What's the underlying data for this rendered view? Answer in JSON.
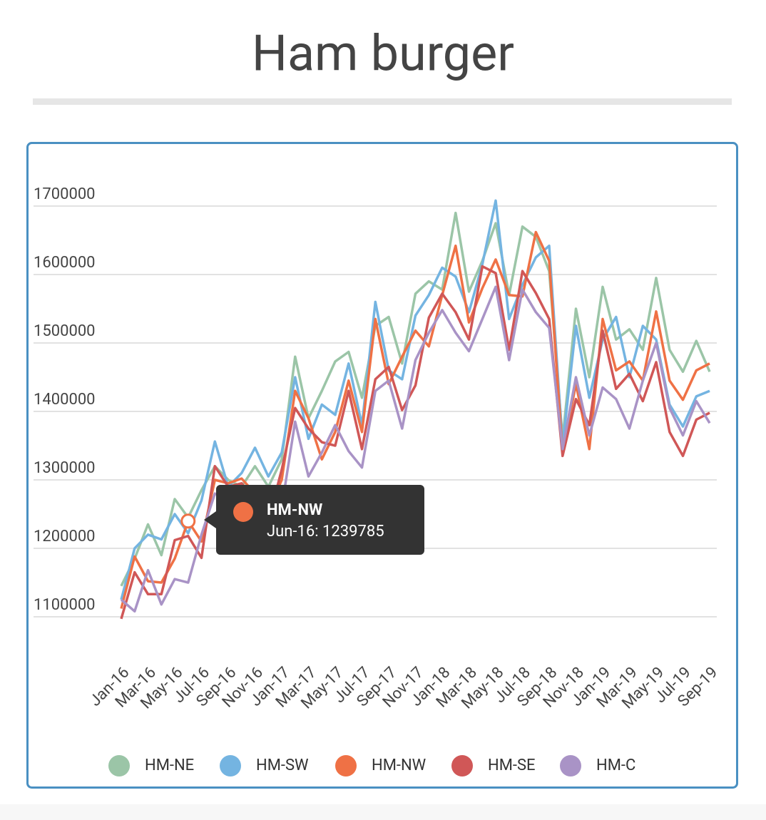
{
  "chart_data": {
    "type": "line",
    "title": "Ham burger",
    "categories": [
      "Jan-16",
      null,
      "Mar-16",
      null,
      "May-16",
      null,
      "Jul-16",
      null,
      "Sep-16",
      null,
      "Nov-16",
      null,
      "Jan-17",
      null,
      "Mar-17",
      null,
      "May-17",
      null,
      "Jul-17",
      null,
      "Sep-17",
      null,
      "Nov-17",
      null,
      "Jan-18",
      null,
      "Mar-18",
      null,
      "May-18",
      null,
      "Jul-18",
      null,
      "Sep-18",
      null,
      "Nov-18",
      null,
      "Jan-19",
      null,
      "Mar-19",
      null,
      "May-19",
      null,
      "Jul-19",
      null,
      "Sep-19"
    ],
    "series": [
      {
        "name": "HM-NE",
        "color": "#9bc5a7",
        "values": [
          1145000,
          1185000,
          1235000,
          1190000,
          1272000,
          1245000,
          1285000,
          1320000,
          1300000,
          1290000,
          1320000,
          1290000,
          1330000,
          1480000,
          1390000,
          1430000,
          1473000,
          1487000,
          1420000,
          1525000,
          1538000,
          1470000,
          1572000,
          1590000,
          1578000,
          1690000,
          1575000,
          1620000,
          1675000,
          1570000,
          1670000,
          1655000,
          1605000,
          1360000,
          1550000,
          1450000,
          1582000,
          1505000,
          1520000,
          1490000,
          1595000,
          1490000,
          1458000,
          1503000,
          1458000
        ]
      },
      {
        "name": "HM-SW",
        "color": "#74b4e1",
        "values": [
          1125000,
          1200000,
          1220000,
          1213000,
          1250000,
          1222000,
          1270000,
          1356000,
          1290000,
          1310000,
          1347000,
          1305000,
          1340000,
          1450000,
          1360000,
          1410000,
          1395000,
          1470000,
          1380000,
          1560000,
          1460000,
          1447000,
          1540000,
          1570000,
          1610000,
          1597000,
          1545000,
          1615000,
          1708000,
          1535000,
          1585000,
          1625000,
          1642000,
          1350000,
          1525000,
          1420000,
          1505000,
          1538000,
          1450000,
          1525000,
          1505000,
          1410000,
          1378000,
          1422000,
          1430000
        ]
      },
      {
        "name": "HM-NW",
        "color": "#ef7145",
        "values": [
          1112000,
          1188000,
          1152000,
          1150000,
          1185000,
          1239785,
          1210000,
          1300000,
          1295000,
          1302000,
          1280000,
          1255000,
          1300000,
          1430000,
          1390000,
          1330000,
          1370000,
          1445000,
          1370000,
          1535000,
          1440000,
          1480000,
          1518000,
          1495000,
          1570000,
          1642000,
          1530000,
          1580000,
          1622000,
          1570000,
          1568000,
          1662000,
          1620000,
          1340000,
          1440000,
          1345000,
          1535000,
          1460000,
          1473000,
          1445000,
          1546000,
          1445000,
          1417000,
          1460000,
          1470000
        ]
      },
      {
        "name": "HM-SE",
        "color": "#d05757",
        "values": [
          1097000,
          1165000,
          1133000,
          1133000,
          1212000,
          1218000,
          1186000,
          1320000,
          1290000,
          1295000,
          1270000,
          1240000,
          1315000,
          1405000,
          1375000,
          1355000,
          1350000,
          1430000,
          1345000,
          1447000,
          1465000,
          1402000,
          1438000,
          1537000,
          1572000,
          1545000,
          1505000,
          1612000,
          1602000,
          1490000,
          1605000,
          1573000,
          1535000,
          1335000,
          1418000,
          1380000,
          1518000,
          1433000,
          1455000,
          1415000,
          1472000,
          1370000,
          1335000,
          1388000,
          1398000
        ]
      },
      {
        "name": "HM-C",
        "color": "#a993c6",
        "values": [
          1125000,
          1108000,
          1168000,
          1118000,
          1155000,
          1150000,
          1220000,
          1280000,
          1270000,
          1260000,
          1268000,
          1235000,
          1260000,
          1385000,
          1305000,
          1340000,
          1380000,
          1342000,
          1318000,
          1430000,
          1445000,
          1375000,
          1475000,
          1515000,
          1548000,
          1515000,
          1488000,
          1535000,
          1582000,
          1475000,
          1578000,
          1545000,
          1522000,
          1345000,
          1450000,
          1365000,
          1435000,
          1418000,
          1375000,
          1445000,
          1500000,
          1405000,
          1365000,
          1415000,
          1383000
        ]
      }
    ],
    "ylim": [
      1050000,
      1750000
    ],
    "yticks": [
      1100000,
      1200000,
      1300000,
      1400000,
      1500000,
      1600000,
      1700000
    ],
    "grid": true,
    "legend": "bottom",
    "tooltip": {
      "category": "Jun-16"
    }
  }
}
